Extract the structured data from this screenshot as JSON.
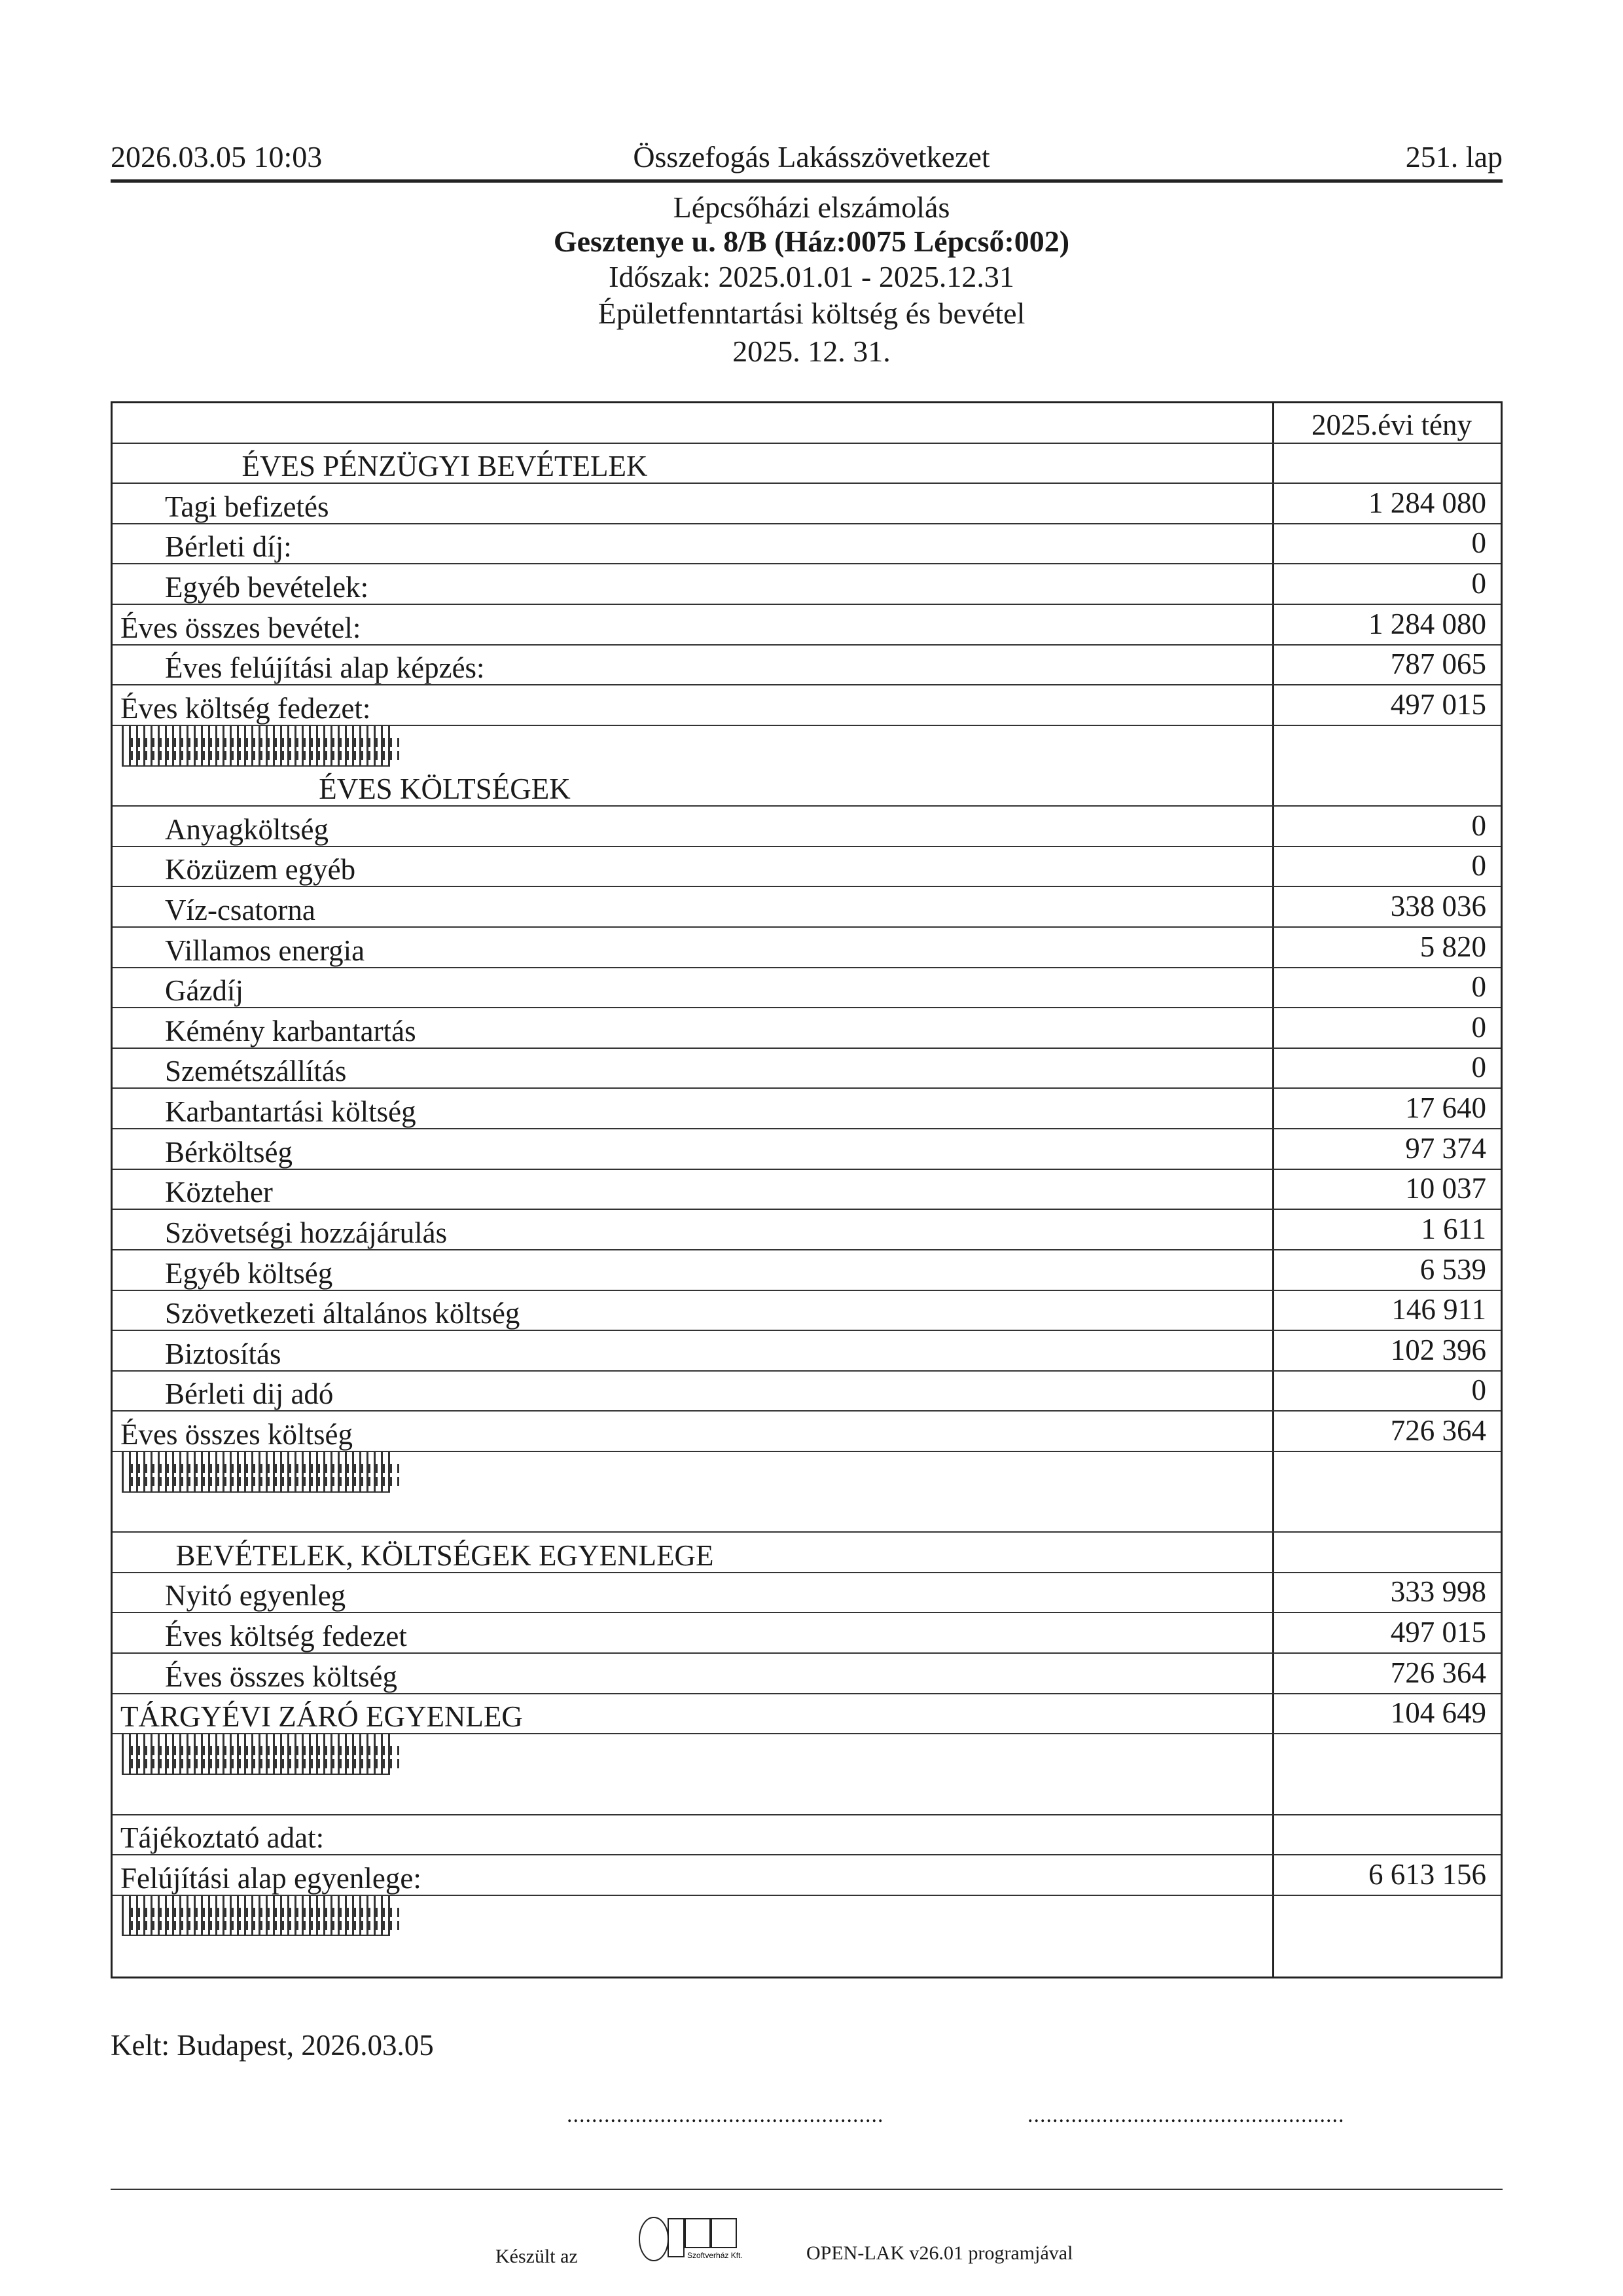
{
  "header": {
    "datetime": "2026.03.05 10:03",
    "organization": "Összefogás Lakásszövetkezet",
    "page": "251. lap"
  },
  "titles": [
    "Lépcsőházi elszámolás",
    "Gesztenye u. 8/B (Ház:0075 Lépcső:002)",
    "Időszak: 2025.01.01 - 2025.12.31",
    "Épületfenntartási költség és bevétel",
    "2025. 12. 31."
  ],
  "table": {
    "column_header": "2025.évi tény",
    "rows": [
      {
        "kind": "header",
        "label": "",
        "value": "2025.évi tény"
      },
      {
        "kind": "section",
        "label": "ÉVES PÉNZÜGYI BEVÉTELEK",
        "value": ""
      },
      {
        "kind": "item",
        "label": "Tagi  befizetés",
        "value": "1 284 080"
      },
      {
        "kind": "item",
        "label": "Bérleti díj:",
        "value": "0"
      },
      {
        "kind": "item",
        "label": "Egyéb bevételek:",
        "value": "0"
      },
      {
        "kind": "total",
        "label": "Éves összes bevétel:",
        "value": "1 284 080"
      },
      {
        "kind": "item",
        "label": "Éves felújítási alap képzés:",
        "value": "787 065"
      },
      {
        "kind": "total",
        "label": "Éves költség fedezet:",
        "value": "497 015"
      },
      {
        "kind": "bars",
        "label": "",
        "value": ""
      },
      {
        "kind": "section",
        "label": "ÉVES KÖLTSÉGEK",
        "value": ""
      },
      {
        "kind": "item",
        "label": "Anyagköltség",
        "value": "0"
      },
      {
        "kind": "item",
        "label": "Közüzem egyéb",
        "value": "0"
      },
      {
        "kind": "item",
        "label": "Víz-csatorna",
        "value": "338 036"
      },
      {
        "kind": "item",
        "label": "Villamos energia",
        "value": "5 820"
      },
      {
        "kind": "item",
        "label": "Gázdíj",
        "value": "0"
      },
      {
        "kind": "item",
        "label": "Kémény karbantartás",
        "value": "0"
      },
      {
        "kind": "item",
        "label": "Szemétszállítás",
        "value": "0"
      },
      {
        "kind": "item",
        "label": "Karbantartási költség",
        "value": "17 640"
      },
      {
        "kind": "item",
        "label": "Bérköltség",
        "value": "97 374"
      },
      {
        "kind": "item",
        "label": "Közteher",
        "value": "10 037"
      },
      {
        "kind": "item",
        "label": "Szövetségi hozzájárulás",
        "value": "1 611"
      },
      {
        "kind": "item",
        "label": "Egyéb költség",
        "value": "6 539"
      },
      {
        "kind": "item",
        "label": "Szövetkezeti általános költség",
        "value": "146 911"
      },
      {
        "kind": "item",
        "label": "Biztosítás",
        "value": "102 396"
      },
      {
        "kind": "item",
        "label": "Bérleti dij adó",
        "value": "0"
      },
      {
        "kind": "total",
        "label": "Éves összes költség",
        "value": "726 364"
      },
      {
        "kind": "bars",
        "label": "",
        "value": ""
      },
      {
        "kind": "empty",
        "label": "",
        "value": ""
      },
      {
        "kind": "section",
        "label": "BEVÉTELEK, KÖLTSÉGEK EGYENLEGE",
        "value": ""
      },
      {
        "kind": "item",
        "label": "Nyitó egyenleg",
        "value": "333 998"
      },
      {
        "kind": "item",
        "label": "Éves költség fedezet",
        "value": "497 015"
      },
      {
        "kind": "item",
        "label": "Éves összes költség",
        "value": "726 364"
      },
      {
        "kind": "total",
        "label": "TÁRGYÉVI ZÁRÓ EGYENLEG",
        "value": "104 649"
      },
      {
        "kind": "bars",
        "label": "",
        "value": ""
      },
      {
        "kind": "empty",
        "label": "",
        "value": ""
      },
      {
        "kind": "total",
        "label": "Tájékoztató adat:",
        "value": ""
      },
      {
        "kind": "total",
        "label": "Felújítási alap egyenlege:",
        "value": "6 613 156"
      },
      {
        "kind": "bars",
        "label": "",
        "value": ""
      },
      {
        "kind": "empty",
        "label": "",
        "value": ""
      }
    ]
  },
  "signature": {
    "place_date": "Kelt:   Budapest, 2026.03.05",
    "line1": "...................................................",
    "line2": "..................................................."
  },
  "footer": {
    "made_with": "Készült az",
    "logo_text": "OPEN",
    "logo_sub": "Szoftverház Kft.",
    "program": "OPEN-LAK v26.01 programjával"
  }
}
